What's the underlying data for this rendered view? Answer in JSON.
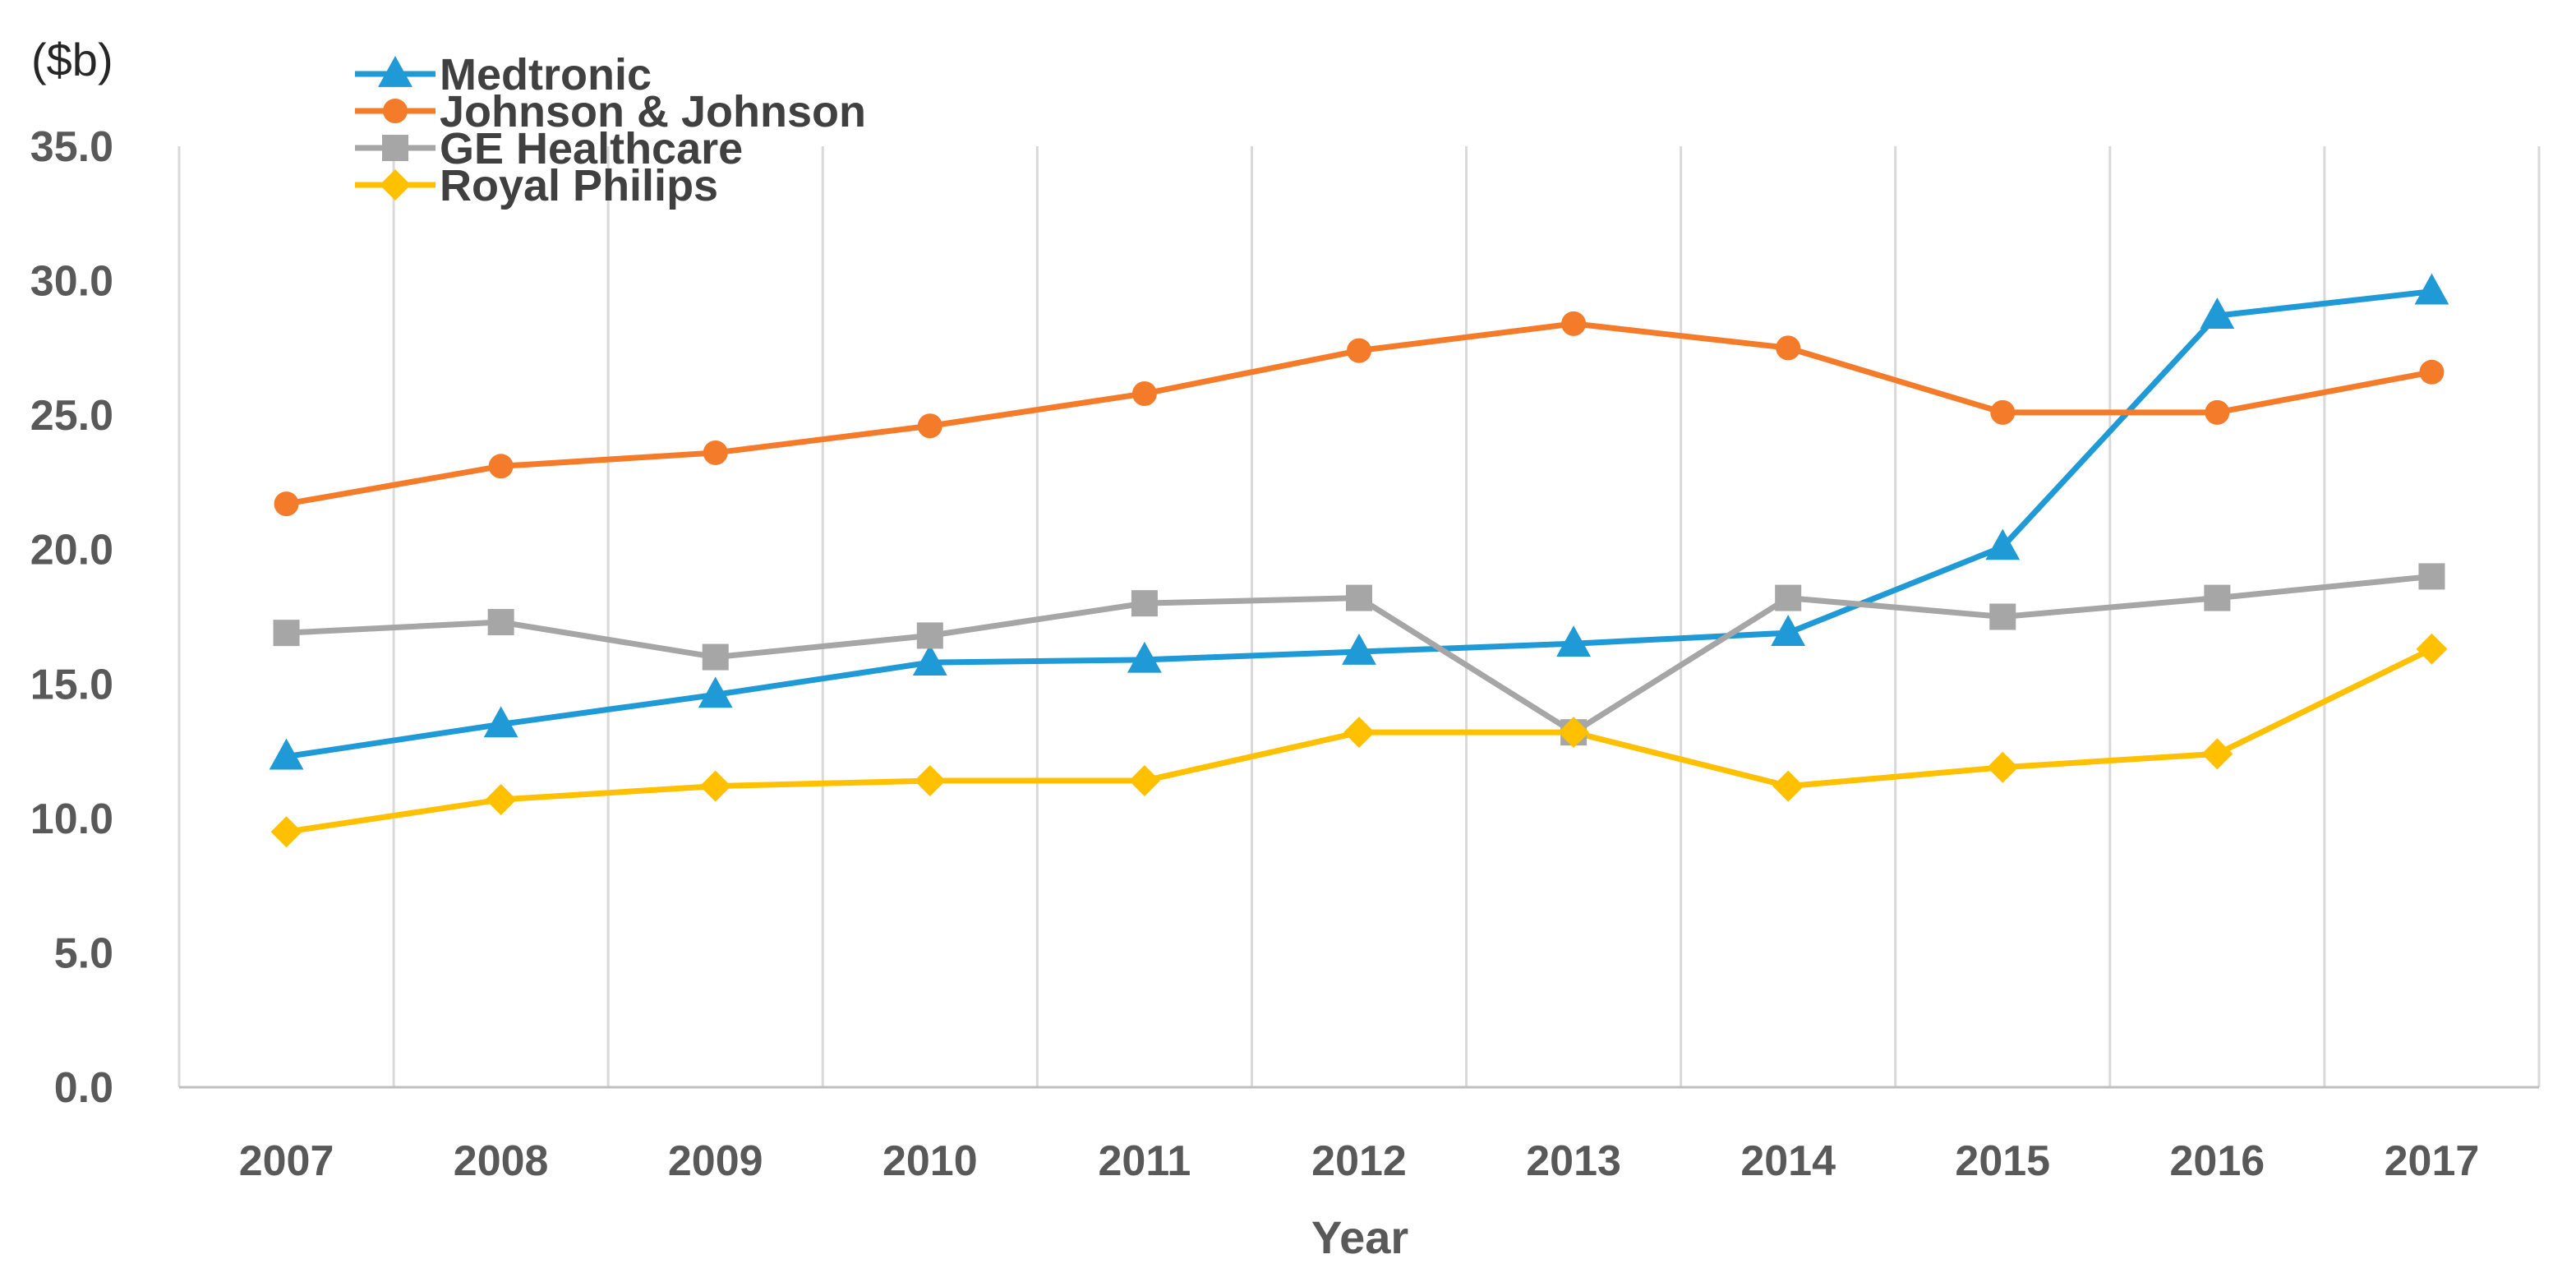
{
  "chart_data": {
    "type": "line",
    "title": "",
    "ylabel": "($b)",
    "xlabel": "Year",
    "ylim": [
      0,
      35
    ],
    "ytick_step": 5,
    "ytick_labels": [
      "0.0",
      "5.0",
      "10.0",
      "15.0",
      "20.0",
      "25.0",
      "30.0",
      "35.0"
    ],
    "categories": [
      "2007",
      "2008",
      "2009",
      "2010",
      "2011",
      "2012",
      "2013",
      "2014",
      "2015",
      "2016",
      "2017"
    ],
    "grid": "vertical",
    "legend_position": "top-left",
    "series": [
      {
        "name": "Medtronic",
        "color": "#1f9ad6",
        "marker": "triangle",
        "values": [
          12.3,
          13.5,
          14.6,
          15.8,
          15.9,
          16.2,
          16.5,
          16.9,
          20.1,
          28.7,
          29.6
        ]
      },
      {
        "name": "Johnson & Johnson",
        "color": "#f47b2a",
        "marker": "circle",
        "values": [
          21.7,
          23.1,
          23.6,
          24.6,
          25.8,
          27.4,
          28.4,
          27.5,
          25.1,
          25.1,
          26.6
        ]
      },
      {
        "name": "GE Healthcare",
        "color": "#a6a6a6",
        "marker": "square",
        "values": [
          16.9,
          17.3,
          16.0,
          16.8,
          18.0,
          18.2,
          13.2,
          18.2,
          17.5,
          18.2,
          19.0
        ]
      },
      {
        "name": "Royal Philips",
        "color": "#ffc000",
        "marker": "diamond",
        "values": [
          9.5,
          10.7,
          11.2,
          11.4,
          11.4,
          13.2,
          13.2,
          11.2,
          11.9,
          12.4,
          16.3
        ]
      }
    ]
  }
}
